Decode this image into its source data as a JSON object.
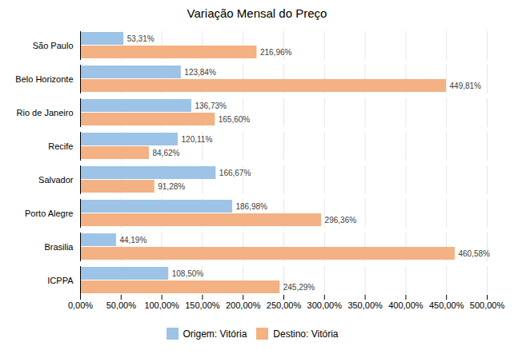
{
  "chart_data": {
    "type": "bar",
    "orientation": "horizontal",
    "title": "Variação Mensal do Preço",
    "categories": [
      "São Paulo",
      "Belo Horizonte",
      "Rio de Janeiro",
      "Recife",
      "Salvador",
      "Porto Alegre",
      "Brasilia",
      "ICPPA"
    ],
    "series": [
      {
        "name": "Origem: Vitória",
        "color": "#9DC3E6",
        "values": [
          53.31,
          123.84,
          136.73,
          120.11,
          166.67,
          186.98,
          44.19,
          108.5
        ],
        "value_labels": [
          "53,31%",
          "123,84%",
          "136,73%",
          "120,11%",
          "166,67%",
          "186,98%",
          "44,19%",
          "108,50%"
        ]
      },
      {
        "name": "Destino: Vitória",
        "color": "#F4B183",
        "values": [
          216.96,
          449.81,
          165.6,
          84.62,
          91.28,
          296.36,
          460.58,
          245.29
        ],
        "value_labels": [
          "216,96%",
          "449,81%",
          "165,60%",
          "84,62%",
          "91,28%",
          "296,36%",
          "460,58%",
          "245,29%"
        ]
      }
    ],
    "xlim": [
      0,
      500
    ],
    "xticks": [
      {
        "value": 0,
        "label": "0,00%"
      },
      {
        "value": 50,
        "label": "50,00%"
      },
      {
        "value": 100,
        "label": "100,00%"
      },
      {
        "value": 150,
        "label": "150,00%"
      },
      {
        "value": 200,
        "label": "200,00%"
      },
      {
        "value": 250,
        "label": "250,00%"
      },
      {
        "value": 300,
        "label": "300,00%"
      },
      {
        "value": 350,
        "label": "350,00%"
      },
      {
        "value": 400,
        "label": "400,00%"
      },
      {
        "value": 450,
        "label": "450,00%"
      },
      {
        "value": 500,
        "label": "500,00%"
      }
    ],
    "grid": true,
    "data_labels": true,
    "legend": "bottom"
  }
}
